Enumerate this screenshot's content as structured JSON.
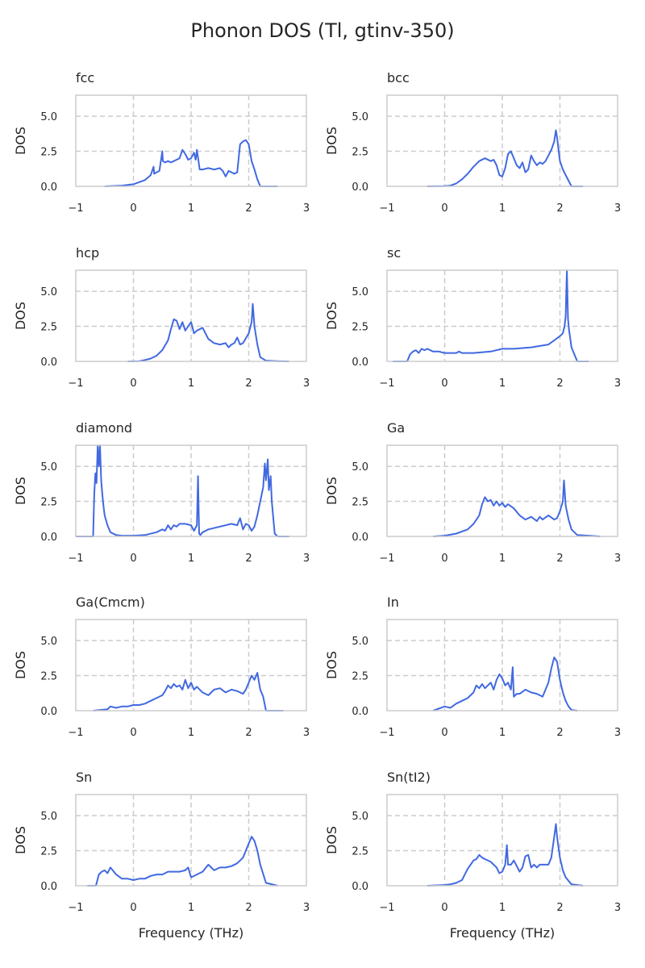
{
  "figure": {
    "title": "Phonon DOS (Tl, gtinv-350)",
    "line_color": "#4169e1",
    "grid_color": "#cccccc",
    "frame_color": "#cccccc"
  },
  "chart_data": [
    {
      "type": "line",
      "title": "fcc",
      "xlabel": "",
      "ylabel": "DOS",
      "xlim": [
        -1,
        3
      ],
      "ylim": [
        0,
        6.5
      ],
      "xticks": [
        "−1",
        "0",
        "1",
        "2",
        "3"
      ],
      "yticks": [
        "0.0",
        "2.5",
        "5.0"
      ],
      "grid": "dashed",
      "series": [
        {
          "x": [
            -0.5,
            -0.2,
            0.0,
            0.1,
            0.2,
            0.3,
            0.35,
            0.36,
            0.4,
            0.45,
            0.5,
            0.51,
            0.55,
            0.6,
            0.65,
            0.7,
            0.75,
            0.8,
            0.85,
            0.9,
            0.95,
            1.0,
            1.05,
            1.08,
            1.1,
            1.15,
            1.2,
            1.3,
            1.4,
            1.5,
            1.55,
            1.6,
            1.65,
            1.7,
            1.75,
            1.8,
            1.85,
            1.9,
            1.95,
            2.0,
            2.05,
            2.1,
            2.15,
            2.2,
            2.3,
            2.5
          ],
          "y": [
            0.0,
            0.05,
            0.15,
            0.3,
            0.45,
            0.8,
            1.4,
            0.9,
            1.0,
            1.1,
            2.5,
            1.8,
            1.7,
            1.8,
            1.7,
            1.8,
            1.9,
            2.0,
            2.6,
            2.3,
            1.9,
            2.0,
            2.4,
            1.9,
            2.6,
            1.2,
            1.2,
            1.3,
            1.2,
            1.3,
            1.1,
            0.7,
            1.1,
            1.0,
            0.9,
            1.0,
            3.0,
            3.2,
            3.3,
            3.0,
            1.8,
            1.2,
            0.5,
            0.0,
            0.0,
            0.0
          ]
        }
      ]
    },
    {
      "type": "line",
      "title": "bcc",
      "xlabel": "",
      "ylabel": "DOS",
      "xlim": [
        -1,
        3
      ],
      "ylim": [
        0,
        6.5
      ],
      "xticks": [
        "−1",
        "0",
        "1",
        "2",
        "3"
      ],
      "yticks": [
        "0.0",
        "2.5",
        "5.0"
      ],
      "grid": "dashed",
      "series": [
        {
          "x": [
            -0.3,
            0.0,
            0.1,
            0.2,
            0.3,
            0.4,
            0.5,
            0.6,
            0.7,
            0.8,
            0.85,
            0.9,
            0.95,
            1.0,
            1.05,
            1.1,
            1.15,
            1.2,
            1.25,
            1.3,
            1.35,
            1.4,
            1.45,
            1.5,
            1.55,
            1.6,
            1.65,
            1.7,
            1.75,
            1.8,
            1.85,
            1.9,
            1.93,
            1.95,
            2.0,
            2.05,
            2.1,
            2.15,
            2.2,
            2.4
          ],
          "y": [
            0.0,
            0.02,
            0.05,
            0.2,
            0.5,
            0.9,
            1.4,
            1.8,
            2.0,
            1.8,
            1.9,
            1.5,
            0.8,
            0.7,
            1.3,
            2.3,
            2.5,
            2.0,
            1.5,
            1.3,
            1.7,
            1.0,
            1.2,
            2.2,
            1.8,
            1.5,
            1.7,
            1.6,
            1.8,
            2.2,
            2.6,
            3.2,
            4.0,
            3.5,
            1.8,
            1.2,
            0.8,
            0.4,
            0.0,
            0.0
          ]
        }
      ]
    },
    {
      "type": "line",
      "title": "hcp",
      "xlabel": "",
      "ylabel": "DOS",
      "xlim": [
        -1,
        3
      ],
      "ylim": [
        0,
        6.5
      ],
      "xticks": [
        "−1",
        "0",
        "1",
        "2",
        "3"
      ],
      "yticks": [
        "0.0",
        "2.5",
        "5.0"
      ],
      "grid": "dashed",
      "series": [
        {
          "x": [
            -0.1,
            0.1,
            0.2,
            0.3,
            0.4,
            0.5,
            0.6,
            0.65,
            0.7,
            0.75,
            0.8,
            0.85,
            0.9,
            0.95,
            1.0,
            1.05,
            1.1,
            1.2,
            1.3,
            1.4,
            1.5,
            1.6,
            1.65,
            1.7,
            1.75,
            1.8,
            1.85,
            1.9,
            2.0,
            2.05,
            2.07,
            2.1,
            2.15,
            2.2,
            2.3,
            2.5,
            2.7
          ],
          "y": [
            0.0,
            0.02,
            0.1,
            0.2,
            0.4,
            0.8,
            1.5,
            2.3,
            3.0,
            2.9,
            2.3,
            2.8,
            2.2,
            2.5,
            2.8,
            2.0,
            2.2,
            2.4,
            1.6,
            1.3,
            1.2,
            1.3,
            1.0,
            1.2,
            1.3,
            1.7,
            1.2,
            1.3,
            2.0,
            2.8,
            4.1,
            2.5,
            1.2,
            0.3,
            0.05,
            0.02,
            0.0
          ]
        }
      ]
    },
    {
      "type": "line",
      "title": "sc",
      "xlabel": "",
      "ylabel": "DOS",
      "xlim": [
        -1,
        3
      ],
      "ylim": [
        0,
        6.5
      ],
      "xticks": [
        "−1",
        "0",
        "1",
        "2",
        "3"
      ],
      "yticks": [
        "0.0",
        "2.5",
        "5.0"
      ],
      "grid": "dashed",
      "series": [
        {
          "x": [
            -0.9,
            -0.65,
            -0.6,
            -0.55,
            -0.5,
            -0.45,
            -0.4,
            -0.35,
            -0.3,
            -0.2,
            -0.1,
            0.0,
            0.1,
            0.2,
            0.25,
            0.3,
            0.5,
            0.8,
            1.0,
            1.2,
            1.5,
            1.8,
            1.9,
            2.0,
            2.05,
            2.08,
            2.1,
            2.12,
            2.14,
            2.16,
            2.2,
            2.3,
            2.5
          ],
          "y": [
            0.0,
            0.0,
            0.5,
            0.7,
            0.8,
            0.6,
            0.9,
            0.8,
            0.9,
            0.7,
            0.7,
            0.6,
            0.6,
            0.6,
            0.7,
            0.6,
            0.6,
            0.7,
            0.9,
            0.9,
            1.0,
            1.2,
            1.5,
            1.8,
            2.0,
            2.5,
            3.2,
            6.5,
            3.0,
            2.2,
            1.0,
            0.0,
            0.0
          ]
        }
      ]
    },
    {
      "type": "line",
      "title": "diamond",
      "xlabel": "",
      "ylabel": "DOS",
      "xlim": [
        -1,
        3
      ],
      "ylim": [
        0,
        6.5
      ],
      "xticks": [
        "−1",
        "0",
        "1",
        "2",
        "3"
      ],
      "yticks": [
        "0.0",
        "2.5",
        "5.0"
      ],
      "grid": "dashed",
      "series": [
        {
          "x": [
            -1.0,
            -0.7,
            -0.68,
            -0.66,
            -0.64,
            -0.62,
            -0.6,
            -0.58,
            -0.56,
            -0.54,
            -0.52,
            -0.5,
            -0.45,
            -0.4,
            -0.3,
            -0.2,
            0.0,
            0.2,
            0.4,
            0.5,
            0.55,
            0.6,
            0.65,
            0.7,
            0.75,
            0.8,
            0.9,
            1.0,
            1.05,
            1.1,
            1.12,
            1.14,
            1.16,
            1.2,
            1.3,
            1.5,
            1.7,
            1.8,
            1.85,
            1.9,
            1.95,
            2.0,
            2.05,
            2.1,
            2.15,
            2.2,
            2.25,
            2.28,
            2.3,
            2.33,
            2.35,
            2.38,
            2.4,
            2.45,
            2.5,
            2.7
          ],
          "y": [
            0.0,
            0.0,
            3.0,
            4.5,
            3.8,
            6.5,
            5.0,
            6.5,
            4.0,
            3.0,
            2.2,
            1.5,
            0.8,
            0.3,
            0.1,
            0.05,
            0.05,
            0.1,
            0.3,
            0.5,
            0.4,
            0.8,
            0.5,
            0.8,
            0.7,
            0.9,
            0.9,
            0.8,
            0.4,
            0.8,
            4.3,
            0.2,
            0.1,
            0.3,
            0.5,
            0.7,
            0.9,
            0.8,
            1.3,
            0.5,
            0.9,
            0.8,
            0.4,
            0.7,
            1.5,
            2.5,
            3.5,
            5.2,
            4.0,
            5.5,
            3.3,
            4.3,
            2.5,
            0.2,
            0.0,
            0.0
          ]
        }
      ]
    },
    {
      "type": "line",
      "title": "Ga",
      "xlabel": "",
      "ylabel": "DOS",
      "xlim": [
        -1,
        3
      ],
      "ylim": [
        0,
        6.5
      ],
      "xticks": [
        "−1",
        "0",
        "1",
        "2",
        "3"
      ],
      "yticks": [
        "0.0",
        "2.5",
        "5.0"
      ],
      "grid": "dashed",
      "series": [
        {
          "x": [
            -0.2,
            0.0,
            0.2,
            0.4,
            0.5,
            0.6,
            0.65,
            0.7,
            0.75,
            0.8,
            0.85,
            0.9,
            0.95,
            1.0,
            1.05,
            1.1,
            1.2,
            1.3,
            1.4,
            1.5,
            1.6,
            1.65,
            1.7,
            1.8,
            1.9,
            1.95,
            2.0,
            2.05,
            2.07,
            2.1,
            2.15,
            2.2,
            2.3,
            2.5,
            2.7
          ],
          "y": [
            0.0,
            0.05,
            0.2,
            0.5,
            0.9,
            1.5,
            2.3,
            2.8,
            2.5,
            2.6,
            2.2,
            2.5,
            2.2,
            2.4,
            2.1,
            2.3,
            2.0,
            1.5,
            1.2,
            1.4,
            1.1,
            1.4,
            1.2,
            1.5,
            1.2,
            1.3,
            1.8,
            2.5,
            4.0,
            2.2,
            1.2,
            0.5,
            0.1,
            0.05,
            0.0
          ]
        }
      ]
    },
    {
      "type": "line",
      "title": "Ga(Cmcm)",
      "xlabel": "",
      "ylabel": "DOS",
      "xlim": [
        -1,
        3
      ],
      "ylim": [
        0,
        6.5
      ],
      "xticks": [
        "−1",
        "0",
        "1",
        "2",
        "3"
      ],
      "yticks": [
        "0.0",
        "2.5",
        "5.0"
      ],
      "grid": "dashed",
      "series": [
        {
          "x": [
            -0.7,
            -0.45,
            -0.4,
            -0.3,
            -0.2,
            -0.1,
            0.0,
            0.1,
            0.2,
            0.3,
            0.4,
            0.5,
            0.55,
            0.6,
            0.65,
            0.7,
            0.75,
            0.8,
            0.85,
            0.9,
            0.95,
            1.0,
            1.05,
            1.1,
            1.2,
            1.3,
            1.4,
            1.5,
            1.6,
            1.7,
            1.8,
            1.9,
            1.95,
            2.0,
            2.05,
            2.1,
            2.15,
            2.2,
            2.25,
            2.3,
            2.6
          ],
          "y": [
            0.0,
            0.1,
            0.3,
            0.2,
            0.3,
            0.3,
            0.4,
            0.4,
            0.5,
            0.7,
            0.9,
            1.1,
            1.4,
            1.8,
            1.6,
            1.9,
            1.7,
            1.8,
            1.5,
            2.2,
            1.6,
            2.0,
            1.5,
            1.7,
            1.3,
            1.1,
            1.5,
            1.6,
            1.3,
            1.5,
            1.4,
            1.2,
            1.5,
            2.0,
            2.5,
            2.2,
            2.7,
            1.5,
            1.0,
            0.0,
            0.0
          ]
        }
      ]
    },
    {
      "type": "line",
      "title": "In",
      "xlabel": "",
      "ylabel": "DOS",
      "xlim": [
        -1,
        3
      ],
      "ylim": [
        0,
        6.5
      ],
      "xticks": [
        "−1",
        "0",
        "1",
        "2",
        "3"
      ],
      "yticks": [
        "0.0",
        "2.5",
        "5.0"
      ],
      "grid": "dashed",
      "series": [
        {
          "x": [
            -0.2,
            0.0,
            0.1,
            0.2,
            0.3,
            0.4,
            0.5,
            0.55,
            0.6,
            0.65,
            0.7,
            0.75,
            0.8,
            0.85,
            0.9,
            0.95,
            1.0,
            1.05,
            1.1,
            1.15,
            1.18,
            1.2,
            1.25,
            1.3,
            1.4,
            1.5,
            1.6,
            1.7,
            1.8,
            1.85,
            1.9,
            1.95,
            2.0,
            2.05,
            2.1,
            2.15,
            2.2,
            2.3
          ],
          "y": [
            0.0,
            0.3,
            0.2,
            0.5,
            0.7,
            0.9,
            1.3,
            1.8,
            1.6,
            1.9,
            1.6,
            1.8,
            2.0,
            1.5,
            2.2,
            2.6,
            2.3,
            1.8,
            2.0,
            1.5,
            3.1,
            1.0,
            1.2,
            1.2,
            1.5,
            1.3,
            1.2,
            1.0,
            2.0,
            3.0,
            3.8,
            3.5,
            2.2,
            1.3,
            0.7,
            0.3,
            0.05,
            0.0
          ]
        }
      ]
    },
    {
      "type": "line",
      "title": "Sn",
      "xlabel": "Frequency (THz)",
      "ylabel": "DOS",
      "xlim": [
        -1,
        3
      ],
      "ylim": [
        0,
        6.5
      ],
      "xticks": [
        "−1",
        "0",
        "1",
        "2",
        "3"
      ],
      "yticks": [
        "0.0",
        "2.5",
        "5.0"
      ],
      "grid": "dashed",
      "series": [
        {
          "x": [
            -0.8,
            -0.65,
            -0.6,
            -0.55,
            -0.5,
            -0.45,
            -0.4,
            -0.3,
            -0.2,
            -0.1,
            0.0,
            0.1,
            0.2,
            0.3,
            0.4,
            0.5,
            0.6,
            0.7,
            0.8,
            0.9,
            0.95,
            1.0,
            1.1,
            1.2,
            1.3,
            1.4,
            1.5,
            1.6,
            1.7,
            1.8,
            1.9,
            1.95,
            2.0,
            2.05,
            2.1,
            2.15,
            2.2,
            2.3,
            2.5
          ],
          "y": [
            0.0,
            0.0,
            0.8,
            1.0,
            1.1,
            0.9,
            1.3,
            0.8,
            0.5,
            0.5,
            0.4,
            0.5,
            0.5,
            0.7,
            0.8,
            0.8,
            1.0,
            1.0,
            1.0,
            1.1,
            1.3,
            0.6,
            0.8,
            1.0,
            1.5,
            1.1,
            1.3,
            1.3,
            1.4,
            1.6,
            2.0,
            2.5,
            3.0,
            3.5,
            3.2,
            2.5,
            1.5,
            0.2,
            0.0
          ]
        }
      ]
    },
    {
      "type": "line",
      "title": "Sn(tI2)",
      "xlabel": "Frequency (THz)",
      "ylabel": "DOS",
      "xlim": [
        -1,
        3
      ],
      "ylim": [
        0,
        6.5
      ],
      "xticks": [
        "−1",
        "0",
        "1",
        "2",
        "3"
      ],
      "yticks": [
        "0.0",
        "2.5",
        "5.0"
      ],
      "grid": "dashed",
      "series": [
        {
          "x": [
            -0.3,
            0.0,
            0.1,
            0.2,
            0.3,
            0.35,
            0.4,
            0.5,
            0.55,
            0.6,
            0.65,
            0.7,
            0.8,
            0.9,
            0.95,
            1.0,
            1.05,
            1.08,
            1.1,
            1.15,
            1.2,
            1.3,
            1.35,
            1.4,
            1.45,
            1.5,
            1.55,
            1.6,
            1.65,
            1.7,
            1.8,
            1.85,
            1.9,
            1.93,
            1.95,
            2.0,
            2.05,
            2.1,
            2.2,
            2.4
          ],
          "y": [
            0.0,
            0.05,
            0.1,
            0.2,
            0.4,
            0.8,
            1.2,
            1.8,
            1.9,
            2.2,
            2.0,
            1.9,
            1.7,
            1.3,
            0.9,
            1.0,
            1.5,
            2.9,
            1.5,
            1.5,
            1.8,
            1.0,
            1.3,
            2.1,
            2.2,
            1.3,
            1.5,
            1.3,
            1.5,
            1.5,
            1.5,
            2.0,
            3.5,
            4.4,
            3.5,
            2.0,
            1.1,
            0.6,
            0.1,
            0.0
          ]
        }
      ]
    }
  ]
}
